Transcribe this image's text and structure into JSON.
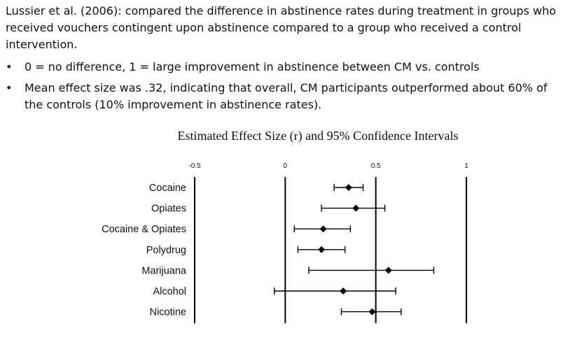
{
  "intro": {
    "paragraph": "Lussier et al. (2006): compared the difference in abstinence rates during treatment in groups who received vouchers contingent upon abstinence compared to a group who received a control intervention.",
    "bullets": [
      "0 = no difference, 1 = large improvement in abstinence between CM vs. controls",
      "Mean effect size was .32, indicating that overall, CM participants outperformed about 60% of the controls (10% improvement in abstinence rates)."
    ]
  },
  "chart_data": {
    "type": "forest",
    "title": "Estimated Effect Size (r) and 95% Confidence Intervals",
    "xlim": [
      -0.5,
      1
    ],
    "xticks": [
      "-0.5",
      "0",
      "0.5",
      "1"
    ],
    "reference_lines": [
      -0.5,
      0,
      0.5,
      1
    ],
    "grid": false,
    "categories": [
      "Cocaine",
      "Opiates",
      "Cocaine & Opiates",
      "Polydrug",
      "Marijuana",
      "Alcohol",
      "Nicotine"
    ],
    "estimate": [
      0.35,
      0.39,
      0.21,
      0.2,
      0.57,
      0.32,
      0.48
    ],
    "ci_lower": [
      0.27,
      0.2,
      0.05,
      0.07,
      0.13,
      -0.06,
      0.31
    ],
    "ci_upper": [
      0.43,
      0.55,
      0.36,
      0.33,
      0.82,
      0.61,
      0.64
    ]
  }
}
